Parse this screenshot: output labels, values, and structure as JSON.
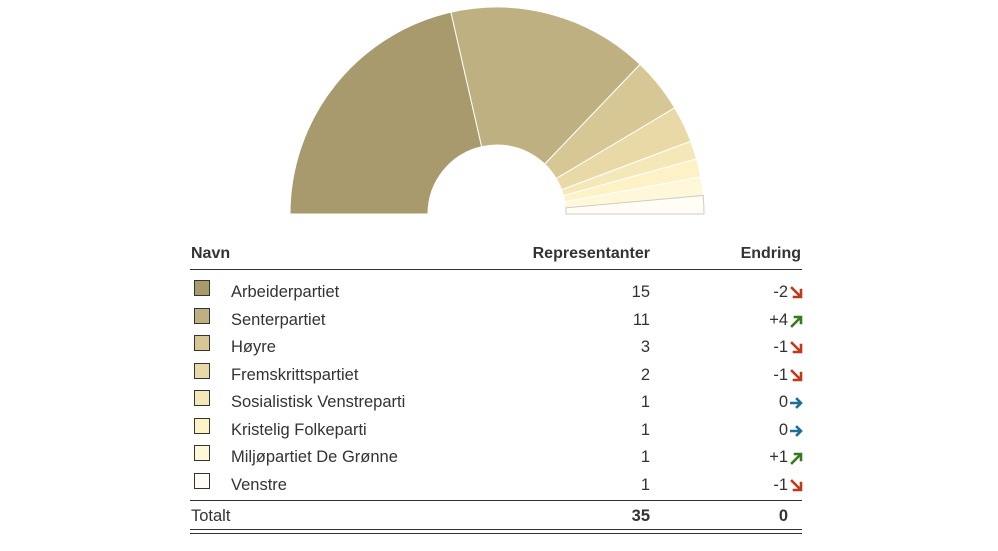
{
  "chart_data": {
    "type": "pie",
    "variant": "half-donut",
    "colors": {
      "slice_stroke": "#ffffff",
      "up": "#3a7a1f",
      "down": "#c0391b",
      "same": "#1f6f95",
      "border": "#333333"
    },
    "headers": {
      "name": "Navn",
      "value": "Representanter",
      "change": "Endring"
    },
    "series": [
      {
        "name": "Arbeiderpartiet",
        "value": 15,
        "change": "-2",
        "trend": "down",
        "color": "#a89a6c"
      },
      {
        "name": "Senterpartiet",
        "value": 11,
        "change": "+4",
        "trend": "up",
        "color": "#bfb081"
      },
      {
        "name": "Høyre",
        "value": 3,
        "change": "-1",
        "trend": "down",
        "color": "#d6c794"
      },
      {
        "name": "Fremskrittspartiet",
        "value": 2,
        "change": "-1",
        "trend": "down",
        "color": "#e8d9a6"
      },
      {
        "name": "Sosialistisk Venstreparti",
        "value": 1,
        "change": "0",
        "trend": "same",
        "color": "#f5e8b8"
      },
      {
        "name": "Kristelig Folkeparti",
        "value": 1,
        "change": "0",
        "trend": "same",
        "color": "#fcf2c6"
      },
      {
        "name": "Miljøpartiet De Grønne",
        "value": 1,
        "change": "+1",
        "trend": "up",
        "color": "#fef7d8"
      },
      {
        "name": "Venstre",
        "value": 1,
        "change": "-1",
        "trend": "down",
        "color": "#fffdf4"
      }
    ],
    "total": {
      "label": "Totalt",
      "value": "35",
      "change": "0"
    }
  }
}
